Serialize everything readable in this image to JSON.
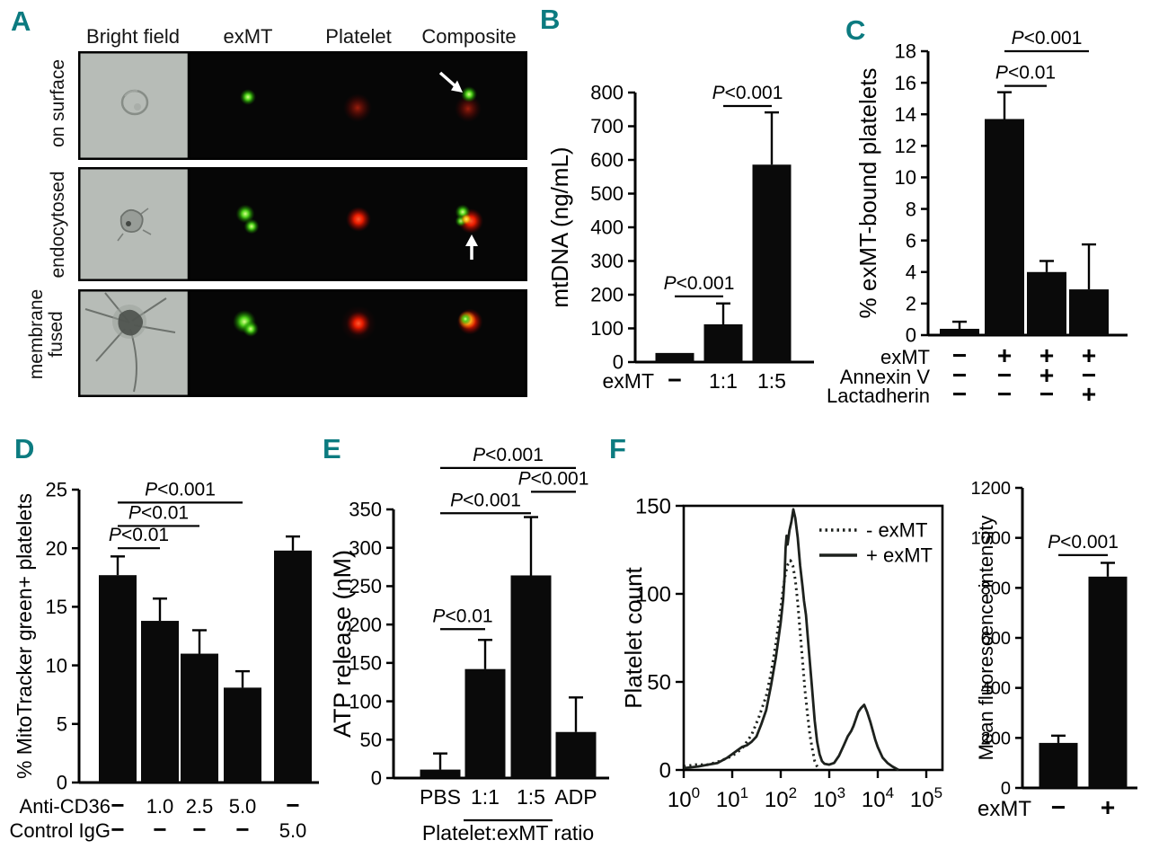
{
  "panels": {
    "A": {
      "letter": "A",
      "column_headers": [
        "Bright field",
        "exMT",
        "Platelet",
        "Composite"
      ],
      "row_labels": [
        "on surface",
        "endocytosed",
        "membrane fused"
      ]
    },
    "B": {
      "letter": "B"
    },
    "C": {
      "letter": "C"
    },
    "D": {
      "letter": "D"
    },
    "E": {
      "letter": "E"
    },
    "F": {
      "letter": "F"
    }
  },
  "colors": {
    "panel_letter": "#0c7b80",
    "bar_fill": "#0a0a0a",
    "curve": "#1d211d",
    "brightfield_bg": "#b7bcb7",
    "fluor_green": "#52d41c",
    "fluor_red": "#e81c00"
  },
  "chart_data": [
    {
      "id": "B",
      "type": "bar",
      "ylabel": "mtDNA (ng/mL)",
      "ylim": [
        0,
        800
      ],
      "ytick_step": 100,
      "x_prefix": "exMT",
      "categories": [
        "-",
        "1:1",
        "1:5"
      ],
      "values": [
        27,
        112,
        586
      ],
      "errors": [
        0,
        62,
        155
      ],
      "significance": [
        {
          "from": 0,
          "to": 1,
          "y": 195,
          "label": "P<0.001"
        },
        {
          "from": 1,
          "to": 2,
          "y": 760,
          "label": "P<0.001"
        }
      ]
    },
    {
      "id": "C",
      "type": "bar",
      "ylabel": "% exMT-bound platelets",
      "ylim": [
        0,
        18
      ],
      "ytick_step": 2,
      "values": [
        0.4,
        13.7,
        4.0,
        2.9
      ],
      "errors": [
        0.45,
        1.7,
        0.7,
        2.85
      ],
      "condition_rows": [
        {
          "label": "exMT",
          "values": [
            "-",
            "+",
            "+",
            "+"
          ]
        },
        {
          "label": "Annexin V",
          "values": [
            "-",
            "-",
            "+",
            "-"
          ]
        },
        {
          "label": "Lactadherin",
          "values": [
            "-",
            "-",
            "-",
            "+"
          ]
        }
      ],
      "significance": [
        {
          "from": 1,
          "to": 2,
          "y": 15.8,
          "label": "P<0.01"
        },
        {
          "from": 1,
          "to": 3,
          "y": 18.0,
          "label": "P<0.001"
        }
      ]
    },
    {
      "id": "D",
      "type": "bar",
      "ylabel": "% MitoTracker green+ platelets",
      "ylim": [
        0,
        25
      ],
      "ytick_step": 5,
      "values": [
        17.7,
        13.8,
        11.0,
        8.1,
        19.8
      ],
      "errors": [
        1.6,
        1.9,
        2.0,
        1.4,
        1.2
      ],
      "condition_rows": [
        {
          "label": "Anti-CD36",
          "values": [
            "-",
            "1.0",
            "2.5",
            "5.0",
            "-"
          ]
        },
        {
          "label": "Control IgG",
          "values": [
            "-",
            "-",
            "-",
            "-",
            "5.0"
          ]
        }
      ],
      "significance": [
        {
          "from": 0,
          "to": 1,
          "y": 20.0,
          "label": "P<0.01"
        },
        {
          "from": 0,
          "to": 2,
          "y": 21.9,
          "label": "P<0.01"
        },
        {
          "from": 0,
          "to": 3,
          "y": 23.9,
          "label": "P<0.001"
        }
      ]
    },
    {
      "id": "E",
      "type": "bar",
      "ylabel": "ATP release (nM)",
      "ylim": [
        0,
        350
      ],
      "ytick_step": 50,
      "categories": [
        "PBS",
        "1:1",
        "1:5",
        "ADP"
      ],
      "values": [
        11,
        142,
        264,
        60
      ],
      "errors": [
        21,
        38,
        76,
        45
      ],
      "x_bracket": {
        "from": 1,
        "to": 2,
        "label": "Platelet:exMT ratio"
      },
      "significance": [
        {
          "from": 0,
          "to": 1,
          "y": 194,
          "label": "P<0.01"
        },
        {
          "from": 0,
          "to": 2,
          "y": 345,
          "label": "P<0.001"
        },
        {
          "from": 2,
          "to": 3,
          "y": 373,
          "label": "P<0.001"
        },
        {
          "from": 0,
          "to": 3,
          "y": 404,
          "label": "P<0.001"
        }
      ]
    },
    {
      "id": "F_hist",
      "type": "line",
      "ylabel": "Platelet count",
      "ylim": [
        0,
        150
      ],
      "yticks": [
        0,
        50,
        100,
        150
      ],
      "xticks": [
        "10^0",
        "10^1",
        "10^2",
        "10^3",
        "10^4",
        "10^5"
      ],
      "legend": [
        "- exMT",
        "+ exMT"
      ],
      "series": [
        {
          "name": "- exMT",
          "style": "dotted",
          "points": [
            [
              0,
              2
            ],
            [
              0.25,
              3
            ],
            [
              0.5,
              3
            ],
            [
              0.75,
              5
            ],
            [
              1.0,
              8
            ],
            [
              1.2,
              12
            ],
            [
              1.4,
              20
            ],
            [
              1.55,
              30
            ],
            [
              1.7,
              42
            ],
            [
              1.8,
              55
            ],
            [
              1.9,
              72
            ],
            [
              2.0,
              92
            ],
            [
              2.05,
              103
            ],
            [
              2.1,
              112
            ],
            [
              2.15,
              117
            ],
            [
              2.2,
              119
            ],
            [
              2.25,
              116
            ],
            [
              2.3,
              108
            ],
            [
              2.35,
              95
            ],
            [
              2.4,
              78
            ],
            [
              2.45,
              62
            ],
            [
              2.5,
              45
            ],
            [
              2.55,
              32
            ],
            [
              2.6,
              20
            ],
            [
              2.65,
              12
            ],
            [
              2.7,
              5
            ],
            [
              2.75,
              2
            ],
            [
              2.8,
              0
            ]
          ]
        },
        {
          "name": "+ exMT",
          "style": "solid",
          "points": [
            [
              0,
              1
            ],
            [
              0.3,
              2
            ],
            [
              0.5,
              3
            ],
            [
              0.7,
              4
            ],
            [
              0.9,
              7
            ],
            [
              1.0,
              9
            ],
            [
              1.1,
              11
            ],
            [
              1.2,
              13
            ],
            [
              1.3,
              14
            ],
            [
              1.4,
              16
            ],
            [
              1.5,
              19
            ],
            [
              1.6,
              26
            ],
            [
              1.7,
              34
            ],
            [
              1.8,
              48
            ],
            [
              1.85,
              56
            ],
            [
              1.9,
              64
            ],
            [
              1.95,
              74
            ],
            [
              2.0,
              84
            ],
            [
              2.05,
              97
            ],
            [
              2.08,
              110
            ],
            [
              2.1,
              126
            ],
            [
              2.12,
              133
            ],
            [
              2.14,
              128
            ],
            [
              2.18,
              136
            ],
            [
              2.22,
              141
            ],
            [
              2.26,
              148
            ],
            [
              2.3,
              143
            ],
            [
              2.35,
              132
            ],
            [
              2.4,
              116
            ],
            [
              2.45,
              104
            ],
            [
              2.48,
              96
            ],
            [
              2.52,
              88
            ],
            [
              2.58,
              68
            ],
            [
              2.64,
              48
            ],
            [
              2.7,
              28
            ],
            [
              2.75,
              16
            ],
            [
              2.8,
              9
            ],
            [
              2.85,
              5
            ],
            [
              2.9,
              3.5
            ],
            [
              3.0,
              3
            ],
            [
              3.1,
              4
            ],
            [
              3.2,
              8
            ],
            [
              3.3,
              14
            ],
            [
              3.38,
              19
            ],
            [
              3.45,
              22
            ],
            [
              3.5,
              25
            ],
            [
              3.55,
              29
            ],
            [
              3.6,
              33
            ],
            [
              3.65,
              35
            ],
            [
              3.72,
              37
            ],
            [
              3.78,
              33
            ],
            [
              3.85,
              27
            ],
            [
              3.9,
              22
            ],
            [
              3.95,
              17
            ],
            [
              4.0,
              13
            ],
            [
              4.05,
              10
            ],
            [
              4.1,
              7
            ],
            [
              4.2,
              4
            ],
            [
              4.3,
              2
            ],
            [
              4.43,
              0
            ]
          ]
        }
      ]
    },
    {
      "id": "F_bar",
      "type": "bar",
      "ylabel": "Mean fluorescence intensity",
      "ylim": [
        0,
        1200
      ],
      "ytick_step": 200,
      "x_prefix": "exMT",
      "categories": [
        "-",
        "+"
      ],
      "values": [
        180,
        845
      ],
      "errors": [
        29,
        55
      ],
      "significance": [
        {
          "from": 0,
          "to": 1,
          "y": 931,
          "label": "P<0.001"
        }
      ]
    }
  ]
}
